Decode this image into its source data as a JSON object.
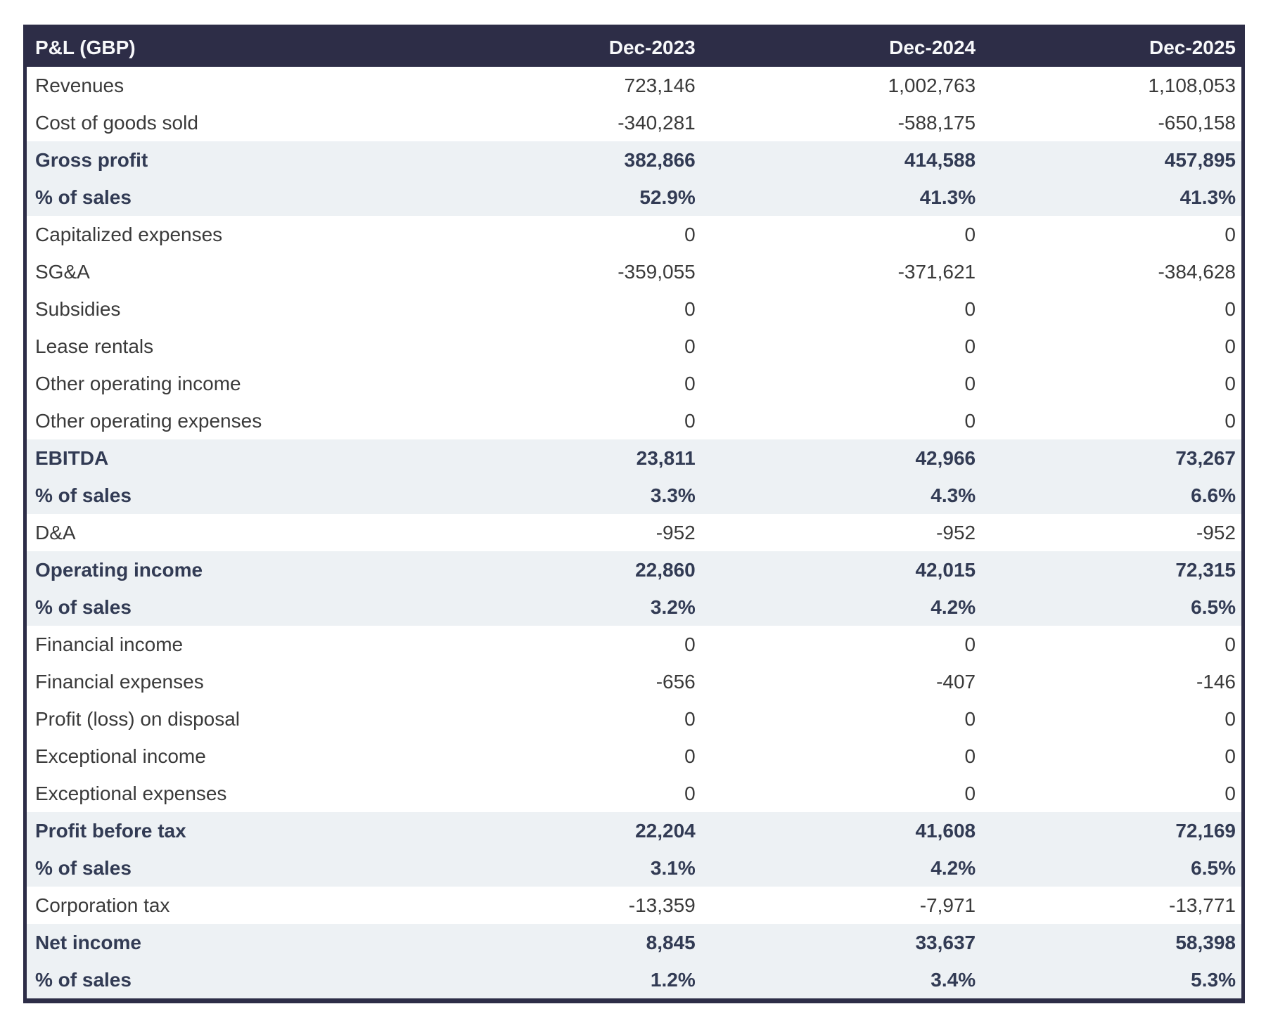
{
  "colors": {
    "header_bg": "#2d2d47",
    "header_text": "#f7f8fa",
    "highlight_bg": "#edf1f4",
    "emphasis_text": "#323b54",
    "normal_text": "#3a3a3a",
    "border": "#2d2d47"
  },
  "chart_data": {
    "type": "table",
    "title": "P&L (GBP)",
    "columns": [
      "Dec-2023",
      "Dec-2024",
      "Dec-2025"
    ],
    "rows": [
      {
        "label": "Revenues",
        "values": [
          "723,146",
          "1,002,763",
          "1,108,053"
        ],
        "emphasis": false
      },
      {
        "label": "Cost of goods sold",
        "values": [
          "-340,281",
          "-588,175",
          "-650,158"
        ],
        "emphasis": false
      },
      {
        "label": "Gross profit",
        "values": [
          "382,866",
          "414,588",
          "457,895"
        ],
        "emphasis": true
      },
      {
        "label": "% of sales",
        "values": [
          "52.9%",
          "41.3%",
          "41.3%"
        ],
        "emphasis": true
      },
      {
        "label": "Capitalized expenses",
        "values": [
          "0",
          "0",
          "0"
        ],
        "emphasis": false
      },
      {
        "label": "SG&A",
        "values": [
          "-359,055",
          "-371,621",
          "-384,628"
        ],
        "emphasis": false
      },
      {
        "label": "Subsidies",
        "values": [
          "0",
          "0",
          "0"
        ],
        "emphasis": false
      },
      {
        "label": "Lease rentals",
        "values": [
          "0",
          "0",
          "0"
        ],
        "emphasis": false
      },
      {
        "label": "Other operating income",
        "values": [
          "0",
          "0",
          "0"
        ],
        "emphasis": false
      },
      {
        "label": "Other operating expenses",
        "values": [
          "0",
          "0",
          "0"
        ],
        "emphasis": false
      },
      {
        "label": "EBITDA",
        "values": [
          "23,811",
          "42,966",
          "73,267"
        ],
        "emphasis": true
      },
      {
        "label": "% of sales",
        "values": [
          "3.3%",
          "4.3%",
          "6.6%"
        ],
        "emphasis": true
      },
      {
        "label": "D&A",
        "values": [
          "-952",
          "-952",
          "-952"
        ],
        "emphasis": false
      },
      {
        "label": "Operating income",
        "values": [
          "22,860",
          "42,015",
          "72,315"
        ],
        "emphasis": true
      },
      {
        "label": "% of sales",
        "values": [
          "3.2%",
          "4.2%",
          "6.5%"
        ],
        "emphasis": true
      },
      {
        "label": "Financial income",
        "values": [
          "0",
          "0",
          "0"
        ],
        "emphasis": false
      },
      {
        "label": "Financial expenses",
        "values": [
          "-656",
          "-407",
          "-146"
        ],
        "emphasis": false
      },
      {
        "label": "Profit (loss) on disposal",
        "values": [
          "0",
          "0",
          "0"
        ],
        "emphasis": false
      },
      {
        "label": "Exceptional income",
        "values": [
          "0",
          "0",
          "0"
        ],
        "emphasis": false
      },
      {
        "label": "Exceptional expenses",
        "values": [
          "0",
          "0",
          "0"
        ],
        "emphasis": false
      },
      {
        "label": "Profit before tax",
        "values": [
          "22,204",
          "41,608",
          "72,169"
        ],
        "emphasis": true
      },
      {
        "label": "% of sales",
        "values": [
          "3.1%",
          "4.2%",
          "6.5%"
        ],
        "emphasis": true
      },
      {
        "label": "Corporation tax",
        "values": [
          "-13,359",
          "-7,971",
          "-13,771"
        ],
        "emphasis": false
      },
      {
        "label": "Net income",
        "values": [
          "8,845",
          "33,637",
          "58,398"
        ],
        "emphasis": true
      },
      {
        "label": "% of sales",
        "values": [
          "1.2%",
          "3.4%",
          "5.3%"
        ],
        "emphasis": true
      }
    ]
  }
}
